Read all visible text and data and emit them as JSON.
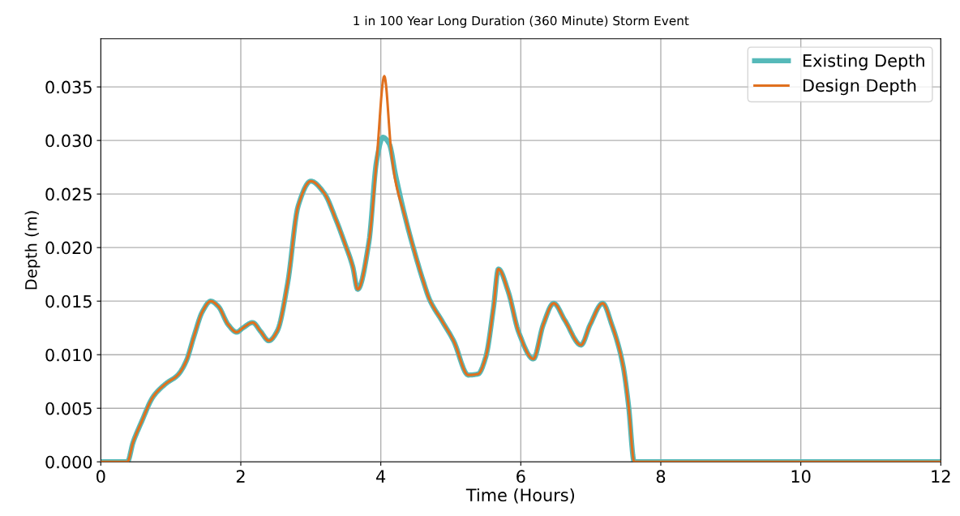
{
  "chart_data": {
    "type": "line",
    "title": "1 in 100 Year Long Duration (360 Minute) Storm Event",
    "xlabel": "Time (Hours)",
    "ylabel": "Depth (m)",
    "xlim": [
      0,
      12
    ],
    "xticks": [
      0,
      2,
      4,
      6,
      8,
      10,
      12
    ],
    "ylim": [
      0,
      0.0395
    ],
    "yticks": [
      {
        "value": 0,
        "label": "0.000"
      },
      {
        "value": 0.005,
        "label": "0.005"
      },
      {
        "value": 0.01,
        "label": "0.010"
      },
      {
        "value": 0.015,
        "label": "0.015"
      },
      {
        "value": 0.02,
        "label": "0.020"
      },
      {
        "value": 0.025,
        "label": "0.025"
      },
      {
        "value": 0.03,
        "label": "0.030"
      },
      {
        "value": 0.035,
        "label": "0.035"
      }
    ],
    "grid": true,
    "legend": "top right",
    "series": [
      {
        "name": "Existing Depth",
        "color": "#56b9b9",
        "x": [
          0,
          0.38,
          0.46,
          0.58,
          0.75,
          0.93,
          1.1,
          1.22,
          1.33,
          1.45,
          1.57,
          1.68,
          1.82,
          1.94,
          2.03,
          2.17,
          2.28,
          2.4,
          2.52,
          2.67,
          2.82,
          3.0,
          3.19,
          3.36,
          3.48,
          3.6,
          3.67,
          3.83,
          3.94,
          4.03,
          4.12,
          4.21,
          4.35,
          4.46,
          4.6,
          4.7,
          4.87,
          5.04,
          5.25,
          5.39,
          5.5,
          5.61,
          5.68,
          5.82,
          5.97,
          6.18,
          6.32,
          6.47,
          6.63,
          6.86,
          6.99,
          7.17,
          7.3,
          7.46,
          7.54,
          7.62,
          12
        ],
        "values": [
          0,
          0,
          0.0018,
          0.0037,
          0.0061,
          0.0073,
          0.0081,
          0.0094,
          0.0117,
          0.014,
          0.015,
          0.0145,
          0.0128,
          0.0121,
          0.0125,
          0.013,
          0.0122,
          0.0113,
          0.0122,
          0.0167,
          0.0239,
          0.0262,
          0.0251,
          0.0226,
          0.0205,
          0.0182,
          0.0161,
          0.0205,
          0.0281,
          0.0303,
          0.0297,
          0.0268,
          0.0228,
          0.0201,
          0.017,
          0.0151,
          0.0132,
          0.0113,
          0.0081,
          0.0082,
          0.0098,
          0.0144,
          0.018,
          0.0159,
          0.0121,
          0.0096,
          0.0128,
          0.0148,
          0.0132,
          0.0109,
          0.0128,
          0.0148,
          0.0128,
          0.009,
          0.0052,
          0,
          0
        ]
      },
      {
        "name": "Design Depth",
        "color": "#e0701e",
        "x": [
          0,
          0.38,
          0.46,
          0.58,
          0.75,
          0.93,
          1.1,
          1.22,
          1.33,
          1.45,
          1.57,
          1.68,
          1.82,
          1.94,
          2.03,
          2.17,
          2.28,
          2.4,
          2.52,
          2.67,
          2.82,
          3.0,
          3.19,
          3.36,
          3.48,
          3.6,
          3.67,
          3.83,
          3.94,
          4.05,
          4.15,
          4.21,
          4.35,
          4.46,
          4.6,
          4.7,
          4.87,
          5.04,
          5.25,
          5.39,
          5.5,
          5.61,
          5.68,
          5.82,
          5.97,
          6.18,
          6.32,
          6.47,
          6.63,
          6.86,
          6.99,
          7.17,
          7.3,
          7.46,
          7.54,
          7.62,
          12
        ],
        "values": [
          0,
          0,
          0.0018,
          0.0037,
          0.0061,
          0.0073,
          0.0081,
          0.0094,
          0.0117,
          0.014,
          0.015,
          0.0145,
          0.0128,
          0.0121,
          0.0125,
          0.013,
          0.0122,
          0.0113,
          0.0122,
          0.0167,
          0.0239,
          0.0262,
          0.0251,
          0.0226,
          0.0205,
          0.0182,
          0.0161,
          0.0205,
          0.0281,
          0.036,
          0.0289,
          0.0262,
          0.0228,
          0.0201,
          0.017,
          0.0151,
          0.0132,
          0.0113,
          0.0081,
          0.0082,
          0.0098,
          0.0144,
          0.018,
          0.0159,
          0.0121,
          0.0096,
          0.0128,
          0.0148,
          0.0132,
          0.0109,
          0.0128,
          0.0148,
          0.0128,
          0.009,
          0.0052,
          0,
          0
        ]
      }
    ]
  }
}
